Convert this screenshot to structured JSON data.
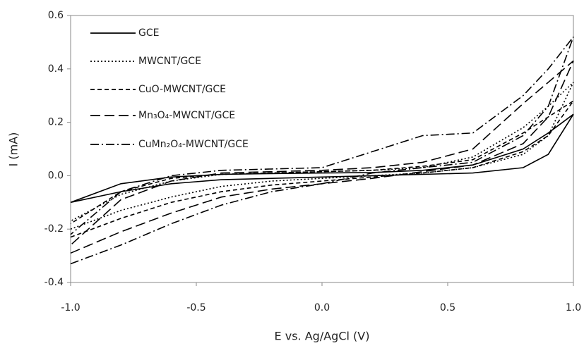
{
  "chart_data": {
    "type": "line",
    "x_label": "E vs. Ag/AgCl (V)",
    "y_label": "I (mA)",
    "xlim": [
      -1,
      1
    ],
    "xticks": [
      {
        "value": -1,
        "label": "-1.0"
      },
      -0.5,
      {
        "value": 0,
        "label": "0.0"
      },
      0.5,
      {
        "value": 1,
        "label": "1.0"
      }
    ],
    "ylim": [
      -0.4,
      0.6
    ],
    "yticks": [
      -0.4,
      -0.2,
      {
        "value": 0,
        "label": "0.0"
      },
      0.2,
      0.4,
      0.6
    ],
    "legend": "upper-left",
    "series": [
      {
        "name": "GCE",
        "color": "#000000",
        "style": "solid",
        "x": [
          -1,
          -0.8,
          -0.6,
          -0.4,
          -0.2,
          0,
          0.2,
          0.4,
          0.6,
          0.8,
          0.9,
          1,
          0.9,
          0.8,
          0.6,
          0.4,
          0.2,
          0,
          -0.2,
          -0.4,
          -0.6,
          -0.8,
          -1
        ],
        "values": [
          -0.1,
          -0.06,
          -0.03,
          -0.015,
          -0.01,
          -0.005,
          0,
          0.005,
          0.01,
          0.03,
          0.08,
          0.23,
          0.16,
          0.1,
          0.04,
          0.02,
          0.012,
          0.01,
          0.008,
          0.005,
          -0.005,
          -0.03,
          -0.1
        ]
      },
      {
        "name": "MWCNT/GCE",
        "color": "#000000",
        "style": "dotted",
        "x": [
          -1,
          -0.8,
          -0.6,
          -0.4,
          -0.2,
          0,
          0.2,
          0.4,
          0.6,
          0.8,
          0.9,
          1,
          0.9,
          0.8,
          0.6,
          0.4,
          0.2,
          0,
          -0.2,
          -0.4,
          -0.6,
          -0.8,
          -1
        ],
        "values": [
          -0.2,
          -0.13,
          -0.08,
          -0.04,
          -0.02,
          -0.01,
          0,
          0.01,
          0.03,
          0.08,
          0.15,
          0.35,
          0.26,
          0.18,
          0.07,
          0.03,
          0.02,
          0.015,
          0.01,
          0.005,
          -0.02,
          -0.07,
          -0.17
        ]
      },
      {
        "name": "CuO-MWCNT/GCE",
        "color": "#000000",
        "style": "dashed",
        "x": [
          -1,
          -0.8,
          -0.6,
          -0.4,
          -0.2,
          0,
          0.2,
          0.4,
          0.6,
          0.8,
          0.9,
          1,
          0.9,
          0.8,
          0.6,
          0.4,
          0.2,
          0,
          -0.2,
          -0.4,
          -0.6,
          -0.8,
          -1
        ],
        "values": [
          -0.23,
          -0.16,
          -0.1,
          -0.06,
          -0.035,
          -0.02,
          -0.005,
          0.01,
          0.03,
          0.09,
          0.15,
          0.28,
          0.22,
          0.16,
          0.06,
          0.035,
          0.02,
          0.015,
          0.01,
          0.005,
          -0.01,
          -0.06,
          -0.18
        ]
      },
      {
        "name": "Mn₃O₄-MWCNT/GCE",
        "color": "#000000",
        "style": "longdash",
        "x": [
          -1,
          -0.8,
          -0.6,
          -0.4,
          -0.2,
          0,
          0.2,
          0.4,
          0.6,
          0.8,
          0.9,
          1,
          0.9,
          0.8,
          0.6,
          0.4,
          0.2,
          0,
          -0.2,
          -0.4,
          -0.6,
          -0.8,
          -1
        ],
        "values": [
          -0.29,
          -0.21,
          -0.14,
          -0.08,
          -0.05,
          -0.03,
          -0.01,
          0.015,
          0.04,
          0.12,
          0.22,
          0.43,
          0.35,
          0.27,
          0.1,
          0.05,
          0.03,
          0.02,
          0.015,
          0.01,
          -0.02,
          -0.09,
          -0.26
        ]
      },
      {
        "name": "CuMn₂O₄-MWCNT/GCE",
        "color": "#000000",
        "style": "dashdot",
        "x": [
          -1,
          -0.8,
          -0.6,
          -0.4,
          -0.2,
          0,
          0.1,
          0.2,
          0.3,
          0.4,
          0.5,
          0.6,
          0.8,
          0.9,
          1,
          0.9,
          0.8,
          0.6,
          0.4,
          0.2,
          0,
          -0.2,
          -0.4,
          -0.6,
          -0.8,
          -1
        ],
        "values": [
          -0.33,
          -0.26,
          -0.18,
          -0.11,
          -0.06,
          -0.03,
          -0.01,
          0.01,
          0.02,
          0.03,
          0.04,
          0.05,
          0.15,
          0.26,
          0.52,
          0.4,
          0.3,
          0.16,
          0.15,
          0.09,
          0.03,
          0.025,
          0.02,
          0.0,
          -0.06,
          -0.22
        ]
      }
    ]
  }
}
